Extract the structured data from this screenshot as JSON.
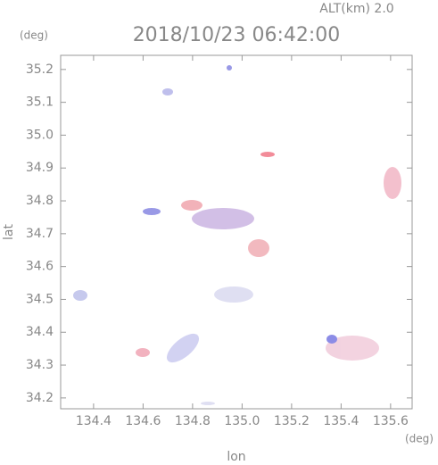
{
  "chart_data": {
    "type": "scatter",
    "title": "2018/10/23 06:42:00",
    "subtitle": "ALT(km) 2.0",
    "y_unit": "(deg)",
    "x_unit": "(deg)",
    "x_label": "lon",
    "y_label": "lat",
    "xlim": [
      134.267,
      135.687
    ],
    "ylim": [
      34.167,
      35.243
    ],
    "xticks": [
      134.4,
      134.6,
      134.8,
      {
        "value": 135.0,
        "label": "135.0"
      },
      135.2,
      135.4,
      135.6
    ],
    "yticks": [
      {
        "value": 34.2,
        "label": "34.2"
      },
      34.3,
      34.4,
      34.5,
      34.6,
      34.7,
      34.8,
      34.9,
      {
        "value": 35.0,
        "label": "35.0"
      },
      35.1,
      35.2
    ],
    "grid": false
  }
}
